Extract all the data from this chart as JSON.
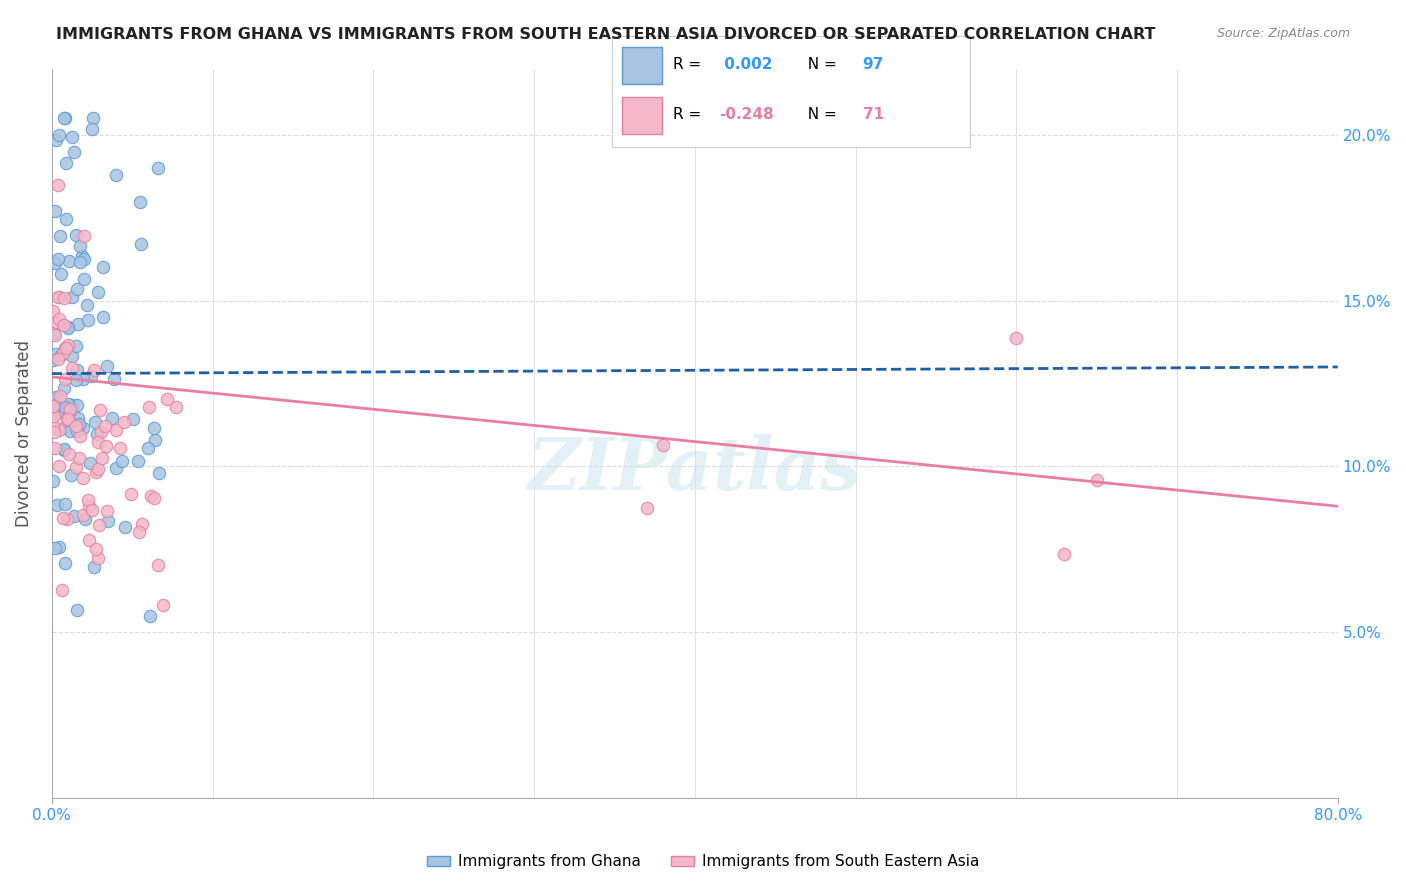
{
  "title": "IMMIGRANTS FROM GHANA VS IMMIGRANTS FROM SOUTH EASTERN ASIA DIVORCED OR SEPARATED CORRELATION CHART",
  "source": "Source: ZipAtlas.com",
  "ylabel": "Divorced or Separated",
  "ytick_labels": [
    "5.0%",
    "10.0%",
    "15.0%",
    "20.0%"
  ],
  "ytick_values": [
    0.05,
    0.1,
    0.15,
    0.2
  ],
  "xlim": [
    0.0,
    0.8
  ],
  "ylim": [
    0.0,
    0.22
  ],
  "ghana_R": 0.002,
  "ghana_N": 97,
  "sea_R": -0.248,
  "sea_N": 71,
  "ghana_color": "#a8c4e0",
  "ghana_edge_color": "#5b9bd5",
  "sea_color": "#f4b8c8",
  "sea_edge_color": "#e87fa0",
  "ghana_line_color": "#1f5fa6",
  "sea_line_color": "#e87fa0",
  "watermark": "ZIPatlas",
  "legend_ghana_label": "Immigrants from Ghana",
  "legend_sea_label": "Immigrants from South Eastern Asia"
}
